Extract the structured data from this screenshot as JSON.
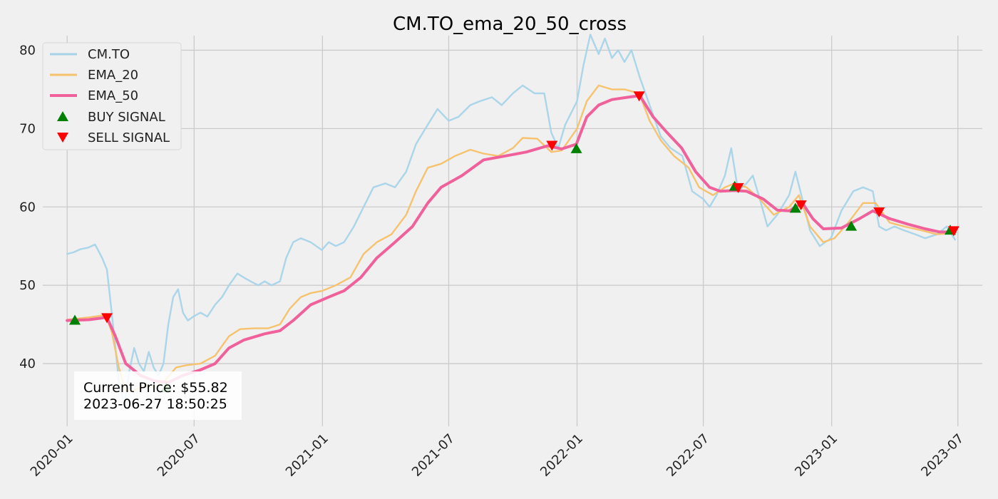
{
  "chart_data": {
    "type": "line",
    "title": "CM.TO_ema_20_50_cross",
    "xlabel": "",
    "ylabel": "",
    "xlim": [
      "2019-11-27",
      "2023-08-05"
    ],
    "ylim": [
      32,
      85.5
    ],
    "grid": true,
    "legend_position": "top-left",
    "x_ticks": [
      "2020-01",
      "2020-07",
      "2021-01",
      "2021-07",
      "2022-01",
      "2022-07",
      "2023-01",
      "2023-07"
    ],
    "y_ticks": [
      40,
      50,
      60,
      70,
      80
    ],
    "colors": {
      "background": "#f0f0f0",
      "grid": "#cbcbcb",
      "price": "#a6d3e8",
      "ema20": "#f7c26e",
      "ema50": "#f0609a",
      "buy": "#008000",
      "sell": "#ff0000"
    },
    "series": [
      {
        "name": "CM.TO",
        "points": [
          [
            "2020-01-01",
            54.0
          ],
          [
            "2020-01-10",
            54.2
          ],
          [
            "2020-01-20",
            54.6
          ],
          [
            "2020-01-31",
            54.8
          ],
          [
            "2020-02-10",
            55.2
          ],
          [
            "2020-02-20",
            53.5
          ],
          [
            "2020-02-27",
            52.0
          ],
          [
            "2020-03-03",
            48.0
          ],
          [
            "2020-03-09",
            43.0
          ],
          [
            "2020-03-16",
            37.0
          ],
          [
            "2020-03-23",
            35.0
          ],
          [
            "2020-03-30",
            39.0
          ],
          [
            "2020-04-06",
            42.0
          ],
          [
            "2020-04-13",
            40.0
          ],
          [
            "2020-04-20",
            39.0
          ],
          [
            "2020-04-27",
            41.5
          ],
          [
            "2020-05-04",
            39.5
          ],
          [
            "2020-05-11",
            38.5
          ],
          [
            "2020-05-18",
            40.0
          ],
          [
            "2020-05-25",
            45.0
          ],
          [
            "2020-06-01",
            48.5
          ],
          [
            "2020-06-08",
            49.5
          ],
          [
            "2020-06-15",
            46.5
          ],
          [
            "2020-06-22",
            45.5
          ],
          [
            "2020-06-30",
            46.0
          ],
          [
            "2020-07-10",
            46.5
          ],
          [
            "2020-07-20",
            46.0
          ],
          [
            "2020-07-31",
            47.5
          ],
          [
            "2020-08-10",
            48.5
          ],
          [
            "2020-08-20",
            50.0
          ],
          [
            "2020-09-01",
            51.5
          ],
          [
            "2020-09-10",
            51.0
          ],
          [
            "2020-09-20",
            50.5
          ],
          [
            "2020-10-01",
            50.0
          ],
          [
            "2020-10-10",
            50.5
          ],
          [
            "2020-10-20",
            50.0
          ],
          [
            "2020-11-01",
            50.5
          ],
          [
            "2020-11-10",
            53.5
          ],
          [
            "2020-11-20",
            55.5
          ],
          [
            "2020-12-01",
            56.0
          ],
          [
            "2020-12-15",
            55.5
          ],
          [
            "2020-12-31",
            54.5
          ],
          [
            "2021-01-10",
            55.5
          ],
          [
            "2021-01-20",
            55.0
          ],
          [
            "2021-02-01",
            55.5
          ],
          [
            "2021-02-15",
            57.5
          ],
          [
            "2021-03-01",
            60.0
          ],
          [
            "2021-03-15",
            62.5
          ],
          [
            "2021-04-01",
            63.0
          ],
          [
            "2021-04-15",
            62.5
          ],
          [
            "2021-05-01",
            64.5
          ],
          [
            "2021-05-15",
            68.0
          ],
          [
            "2021-06-01",
            70.5
          ],
          [
            "2021-06-15",
            72.5
          ],
          [
            "2021-07-01",
            71.0
          ],
          [
            "2021-07-15",
            71.5
          ],
          [
            "2021-08-01",
            73.0
          ],
          [
            "2021-08-15",
            73.5
          ],
          [
            "2021-09-01",
            74.0
          ],
          [
            "2021-09-15",
            73.0
          ],
          [
            "2021-10-01",
            74.5
          ],
          [
            "2021-10-15",
            75.5
          ],
          [
            "2021-11-01",
            74.5
          ],
          [
            "2021-11-15",
            74.5
          ],
          [
            "2021-11-25",
            69.5
          ],
          [
            "2021-12-05",
            67.5
          ],
          [
            "2021-12-15",
            70.5
          ],
          [
            "2022-01-01",
            73.5
          ],
          [
            "2022-01-10",
            78.0
          ],
          [
            "2022-01-20",
            82.0
          ],
          [
            "2022-02-01",
            79.5
          ],
          [
            "2022-02-10",
            81.5
          ],
          [
            "2022-02-20",
            79.0
          ],
          [
            "2022-03-01",
            80.0
          ],
          [
            "2022-03-10",
            78.5
          ],
          [
            "2022-03-20",
            80.0
          ],
          [
            "2022-04-01",
            76.5
          ],
          [
            "2022-04-15",
            73.0
          ],
          [
            "2022-05-01",
            69.0
          ],
          [
            "2022-05-15",
            67.5
          ],
          [
            "2022-06-01",
            66.5
          ],
          [
            "2022-06-15",
            62.0
          ],
          [
            "2022-07-01",
            61.0
          ],
          [
            "2022-07-10",
            60.0
          ],
          [
            "2022-07-20",
            61.5
          ],
          [
            "2022-08-01",
            64.0
          ],
          [
            "2022-08-10",
            67.5
          ],
          [
            "2022-08-20",
            62.0
          ],
          [
            "2022-09-01",
            63.0
          ],
          [
            "2022-09-10",
            64.0
          ],
          [
            "2022-09-20",
            61.0
          ],
          [
            "2022-10-01",
            57.5
          ],
          [
            "2022-10-15",
            59.0
          ],
          [
            "2022-11-01",
            61.5
          ],
          [
            "2022-11-10",
            64.5
          ],
          [
            "2022-11-20",
            61.0
          ],
          [
            "2022-12-01",
            57.0
          ],
          [
            "2022-12-15",
            55.0
          ],
          [
            "2022-12-31",
            56.0
          ],
          [
            "2023-01-15",
            59.5
          ],
          [
            "2023-02-01",
            62.0
          ],
          [
            "2023-02-15",
            62.5
          ],
          [
            "2023-03-01",
            62.0
          ],
          [
            "2023-03-10",
            57.5
          ],
          [
            "2023-03-20",
            57.0
          ],
          [
            "2023-04-01",
            57.5
          ],
          [
            "2023-04-15",
            57.0
          ],
          [
            "2023-05-01",
            56.5
          ],
          [
            "2023-05-15",
            56.0
          ],
          [
            "2023-06-01",
            56.5
          ],
          [
            "2023-06-15",
            57.5
          ],
          [
            "2023-06-27",
            55.82
          ]
        ]
      },
      {
        "name": "EMA_20",
        "points": [
          [
            "2020-01-01",
            45.6
          ],
          [
            "2020-02-01",
            45.9
          ],
          [
            "2020-02-25",
            46.2
          ],
          [
            "2020-03-05",
            44.0
          ],
          [
            "2020-03-15",
            39.5
          ],
          [
            "2020-03-25",
            36.5
          ],
          [
            "2020-04-05",
            36.5
          ],
          [
            "2020-04-20",
            37.2
          ],
          [
            "2020-05-05",
            37.0
          ],
          [
            "2020-05-20",
            37.8
          ],
          [
            "2020-06-05",
            39.5
          ],
          [
            "2020-06-20",
            39.8
          ],
          [
            "2020-07-10",
            40.0
          ],
          [
            "2020-07-31",
            41.0
          ],
          [
            "2020-08-20",
            43.5
          ],
          [
            "2020-09-05",
            44.4
          ],
          [
            "2020-09-25",
            44.5
          ],
          [
            "2020-10-15",
            44.5
          ],
          [
            "2020-11-01",
            45.0
          ],
          [
            "2020-11-15",
            47.0
          ],
          [
            "2020-12-01",
            48.5
          ],
          [
            "2020-12-15",
            49.0
          ],
          [
            "2021-01-01",
            49.3
          ],
          [
            "2021-01-20",
            50.0
          ],
          [
            "2021-02-10",
            51.0
          ],
          [
            "2021-03-01",
            54.0
          ],
          [
            "2021-03-20",
            55.5
          ],
          [
            "2021-04-10",
            56.5
          ],
          [
            "2021-05-01",
            59.0
          ],
          [
            "2021-05-15",
            62.0
          ],
          [
            "2021-06-01",
            65.0
          ],
          [
            "2021-06-20",
            65.5
          ],
          [
            "2021-07-10",
            66.5
          ],
          [
            "2021-08-01",
            67.3
          ],
          [
            "2021-08-20",
            66.8
          ],
          [
            "2021-09-10",
            66.5
          ],
          [
            "2021-10-01",
            67.5
          ],
          [
            "2021-10-15",
            68.8
          ],
          [
            "2021-11-05",
            68.7
          ],
          [
            "2021-11-25",
            67.0
          ],
          [
            "2021-12-10",
            67.2
          ],
          [
            "2022-01-01",
            70.0
          ],
          [
            "2022-01-15",
            73.5
          ],
          [
            "2022-02-01",
            75.5
          ],
          [
            "2022-02-20",
            75.0
          ],
          [
            "2022-03-10",
            75.0
          ],
          [
            "2022-03-31",
            74.5
          ],
          [
            "2022-04-15",
            71.0
          ],
          [
            "2022-05-01",
            68.5
          ],
          [
            "2022-05-20",
            66.5
          ],
          [
            "2022-06-10",
            65.0
          ],
          [
            "2022-06-25",
            62.5
          ],
          [
            "2022-07-15",
            61.5
          ],
          [
            "2022-08-01",
            62.5
          ],
          [
            "2022-08-15",
            63.0
          ],
          [
            "2022-09-01",
            62.5
          ],
          [
            "2022-09-20",
            61.0
          ],
          [
            "2022-10-10",
            59.0
          ],
          [
            "2022-11-01",
            60.0
          ],
          [
            "2022-11-15",
            61.5
          ],
          [
            "2022-12-01",
            57.5
          ],
          [
            "2022-12-20",
            55.5
          ],
          [
            "2023-01-05",
            56.0
          ],
          [
            "2023-01-25",
            58.0
          ],
          [
            "2023-02-15",
            60.5
          ],
          [
            "2023-03-05",
            60.5
          ],
          [
            "2023-03-25",
            58.0
          ],
          [
            "2023-04-15",
            57.5
          ],
          [
            "2023-05-10",
            57.0
          ],
          [
            "2023-06-01",
            56.5
          ],
          [
            "2023-06-27",
            56.7
          ]
        ]
      },
      {
        "name": "EMA_50",
        "points": [
          [
            "2020-01-01",
            45.5
          ],
          [
            "2020-02-01",
            45.6
          ],
          [
            "2020-02-27",
            45.9
          ],
          [
            "2020-03-10",
            43.5
          ],
          [
            "2020-03-25",
            40.0
          ],
          [
            "2020-04-15",
            38.5
          ],
          [
            "2020-05-05",
            37.8
          ],
          [
            "2020-05-25",
            37.6
          ],
          [
            "2020-06-15",
            38.5
          ],
          [
            "2020-07-10",
            39.2
          ],
          [
            "2020-07-31",
            40.0
          ],
          [
            "2020-08-20",
            42.0
          ],
          [
            "2020-09-10",
            43.0
          ],
          [
            "2020-10-10",
            43.8
          ],
          [
            "2020-11-01",
            44.2
          ],
          [
            "2020-11-20",
            45.5
          ],
          [
            "2020-12-15",
            47.5
          ],
          [
            "2021-01-10",
            48.5
          ],
          [
            "2021-02-01",
            49.3
          ],
          [
            "2021-02-25",
            51.0
          ],
          [
            "2021-03-20",
            53.5
          ],
          [
            "2021-04-15",
            55.5
          ],
          [
            "2021-05-10",
            57.5
          ],
          [
            "2021-06-01",
            60.5
          ],
          [
            "2021-06-20",
            62.5
          ],
          [
            "2021-07-20",
            64.0
          ],
          [
            "2021-08-20",
            66.0
          ],
          [
            "2021-09-20",
            66.5
          ],
          [
            "2021-10-20",
            67.0
          ],
          [
            "2021-11-20",
            67.8
          ],
          [
            "2021-12-10",
            67.4
          ],
          [
            "2021-12-31",
            68.0
          ],
          [
            "2022-01-15",
            71.5
          ],
          [
            "2022-02-01",
            73.0
          ],
          [
            "2022-02-20",
            73.7
          ],
          [
            "2022-03-15",
            74.0
          ],
          [
            "2022-04-01",
            74.2
          ],
          [
            "2022-04-20",
            71.5
          ],
          [
            "2022-05-10",
            69.5
          ],
          [
            "2022-05-31",
            67.5
          ],
          [
            "2022-06-20",
            64.5
          ],
          [
            "2022-07-10",
            62.5
          ],
          [
            "2022-07-25",
            62.0
          ],
          [
            "2022-08-15",
            62.1
          ],
          [
            "2022-09-01",
            62.0
          ],
          [
            "2022-09-25",
            61.0
          ],
          [
            "2022-10-15",
            59.6
          ],
          [
            "2022-11-01",
            59.5
          ],
          [
            "2022-11-20",
            60.5
          ],
          [
            "2022-12-05",
            58.5
          ],
          [
            "2022-12-20",
            57.2
          ],
          [
            "2023-01-15",
            57.3
          ],
          [
            "2023-02-10",
            58.5
          ],
          [
            "2023-03-01",
            59.5
          ],
          [
            "2023-03-25",
            58.5
          ],
          [
            "2023-04-20",
            57.8
          ],
          [
            "2023-05-15",
            57.2
          ],
          [
            "2023-06-05",
            56.8
          ],
          [
            "2023-06-27",
            56.8
          ]
        ]
      }
    ],
    "buy_signals": {
      "name": "BUY SIGNAL",
      "points": [
        [
          "2020-01-12",
          45.6
        ],
        [
          "2020-05-22",
          37.0
        ],
        [
          "2021-12-31",
          67.5
        ],
        [
          "2022-08-15",
          62.7
        ],
        [
          "2022-11-10",
          59.9
        ],
        [
          "2023-01-29",
          57.6
        ],
        [
          "2023-06-20",
          57.1
        ]
      ]
    },
    "sell_signals": {
      "name": "SELL SIGNAL",
      "points": [
        [
          "2020-02-27",
          45.8
        ],
        [
          "2021-11-26",
          67.8
        ],
        [
          "2022-03-31",
          74.1
        ],
        [
          "2022-08-20",
          62.4
        ],
        [
          "2022-11-18",
          60.2
        ],
        [
          "2023-03-10",
          59.3
        ],
        [
          "2023-06-25",
          56.9
        ]
      ]
    },
    "annotation": {
      "price_line": "Current Price: $55.82",
      "time_line": "2023-06-27 18:50:25"
    }
  }
}
